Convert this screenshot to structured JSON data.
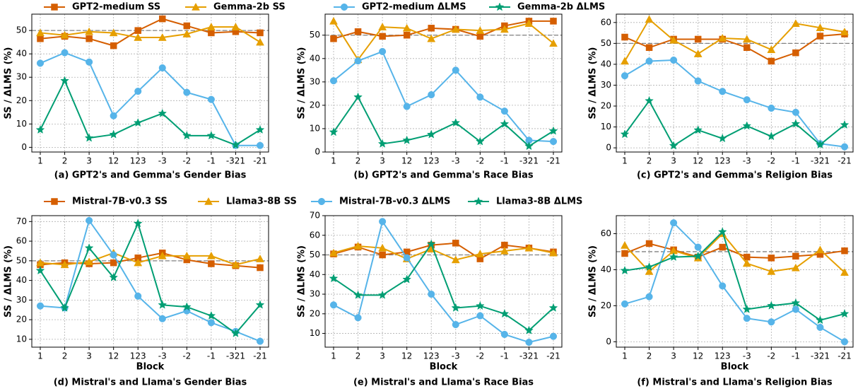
{
  "chart_data": [
    {
      "type": "line",
      "title": "(a) GPT2's and Gemma's Gender Bias",
      "y_label": "SS / ΔLMS (%)",
      "categories": [
        "1",
        "2",
        "3",
        "12",
        "123",
        "-3",
        "-2",
        "-1",
        "-321",
        "-21"
      ],
      "ylim": [
        -2,
        57
      ],
      "yticks": [
        0,
        10,
        20,
        30,
        40,
        50
      ],
      "grid": true,
      "reference_line": 50,
      "series": [
        {
          "name": "GPT2-medium SS",
          "color": "#d55e00",
          "marker": "square",
          "values": [
            46.5,
            47.5,
            46.5,
            43.5,
            50,
            55,
            52,
            49,
            49.5,
            49
          ]
        },
        {
          "name": "Gemma-2b SS",
          "color": "#e69f00",
          "marker": "triangle",
          "values": [
            49,
            48,
            49.5,
            49,
            47,
            47,
            48.5,
            51.5,
            51.5,
            45
          ]
        },
        {
          "name": "GPT2-medium ΔLMS",
          "color": "#56b4e9",
          "marker": "circle",
          "values": [
            36,
            40.5,
            36.5,
            13.5,
            24,
            34,
            23.5,
            20.5,
            0.8,
            0.8
          ]
        },
        {
          "name": "Gemma-2b ΔLMS",
          "color": "#009e73",
          "marker": "star",
          "values": [
            7.5,
            28.5,
            4,
            5.5,
            10.5,
            14.5,
            5,
            5,
            1,
            7.5
          ]
        }
      ]
    },
    {
      "type": "line",
      "title": "(b) GPT2's and Gemma's Race Bias",
      "y_label": "SS / ΔLMS (%)",
      "categories": [
        "1",
        "2",
        "3",
        "12",
        "123",
        "-3",
        "-2",
        "-1",
        "-321",
        "-21"
      ],
      "ylim": [
        0,
        59
      ],
      "yticks": [
        0,
        10,
        20,
        30,
        40,
        50
      ],
      "grid": true,
      "reference_line": 50,
      "series": [
        {
          "name": "GPT2-medium SS",
          "color": "#d55e00",
          "marker": "square",
          "values": [
            48.5,
            51.5,
            49.5,
            50,
            53,
            52.5,
            49.5,
            54,
            56,
            56
          ]
        },
        {
          "name": "Gemma-2b SS",
          "color": "#e69f00",
          "marker": "triangle",
          "values": [
            56,
            39.5,
            53.5,
            53,
            48.5,
            52.5,
            52,
            52.5,
            55,
            46.5
          ]
        },
        {
          "name": "GPT2-medium ΔLMS",
          "color": "#56b4e9",
          "marker": "circle",
          "values": [
            30.5,
            39,
            43,
            19.5,
            24.5,
            35,
            23.5,
            17.5,
            5,
            4.5
          ]
        },
        {
          "name": "Gemma-2b ΔLMS",
          "color": "#009e73",
          "marker": "star",
          "values": [
            8.5,
            23.5,
            3.5,
            5,
            7.5,
            12.5,
            4.5,
            12,
            2.5,
            9
          ]
        }
      ]
    },
    {
      "type": "line",
      "title": "(c) GPT2's and Gemma's Religion Bias",
      "y_label": "SS / ΔLMS (%)",
      "categories": [
        "1",
        "2",
        "3",
        "12",
        "123",
        "-3",
        "-2",
        "-1",
        "-321",
        "-21"
      ],
      "ylim": [
        -2,
        64
      ],
      "yticks": [
        0,
        10,
        20,
        30,
        40,
        50,
        60
      ],
      "grid": true,
      "reference_line": 50,
      "series": [
        {
          "name": "GPT2-medium SS",
          "color": "#d55e00",
          "marker": "square",
          "values": [
            53,
            48,
            52,
            52,
            52,
            48,
            41.5,
            45.5,
            53.5,
            54.5
          ]
        },
        {
          "name": "Gemma-2b SS",
          "color": "#e69f00",
          "marker": "triangle",
          "values": [
            41.5,
            61.5,
            51.5,
            45,
            52.5,
            52,
            47,
            59.5,
            57.5,
            55.5
          ]
        },
        {
          "name": "GPT2-medium ΔLMS",
          "color": "#56b4e9",
          "marker": "circle",
          "values": [
            34.5,
            41.5,
            42,
            32,
            27,
            23,
            19,
            17,
            2,
            0.5
          ]
        },
        {
          "name": "Gemma-2b ΔLMS",
          "color": "#009e73",
          "marker": "star",
          "values": [
            6.5,
            22.5,
            1,
            8.5,
            4.5,
            10.5,
            5.5,
            11.5,
            1.5,
            11
          ]
        }
      ]
    },
    {
      "type": "line",
      "title": "(d) Mistral's and Llama's Gender Bias",
      "y_label": "SS / ΔLMS (%)",
      "x_label": "Block",
      "categories": [
        "1",
        "2",
        "3",
        "12",
        "123",
        "-3",
        "-2",
        "-1",
        "-321",
        "-21"
      ],
      "ylim": [
        6,
        73
      ],
      "yticks": [
        10,
        20,
        30,
        40,
        50,
        60,
        70
      ],
      "grid": true,
      "reference_line": 50,
      "series": [
        {
          "name": "Mistral-7B-v0.3 SS",
          "color": "#d55e00",
          "marker": "square",
          "values": [
            48,
            49,
            48.5,
            49,
            51.5,
            54,
            50.5,
            48.5,
            47.5,
            46.5
          ]
        },
        {
          "name": "Llama3-8B SS",
          "color": "#e69f00",
          "marker": "triangle",
          "values": [
            49,
            48,
            49.5,
            54,
            49,
            52.5,
            52.5,
            52.5,
            48,
            51
          ]
        },
        {
          "name": "Mistral-7B-v0.3 ΔLMS",
          "color": "#56b4e9",
          "marker": "circle",
          "values": [
            27,
            26,
            70.5,
            53,
            32,
            20.5,
            24.5,
            18.5,
            14,
            9
          ]
        },
        {
          "name": "Llama3-8B ΔLMS",
          "color": "#009e73",
          "marker": "star",
          "values": [
            45,
            26,
            56.5,
            41.5,
            69,
            27.5,
            26.5,
            22,
            13,
            27.5
          ]
        }
      ]
    },
    {
      "type": "line",
      "title": "(e) Mistral's and Llama's Race Bias",
      "y_label": "SS / ΔLMS (%)",
      "x_label": "Block",
      "categories": [
        "1",
        "2",
        "3",
        "12",
        "123",
        "-3",
        "-2",
        "-1",
        "-321",
        "-21"
      ],
      "ylim": [
        3,
        70
      ],
      "yticks": [
        10,
        20,
        30,
        40,
        50,
        60,
        70
      ],
      "grid": true,
      "reference_line": 50,
      "series": [
        {
          "name": "Mistral-7B-v0.3 SS",
          "color": "#d55e00",
          "marker": "square",
          "values": [
            50.5,
            54,
            50,
            51.5,
            55,
            56,
            48,
            55,
            53.5,
            51.5
          ]
        },
        {
          "name": "Llama3-8B SS",
          "color": "#e69f00",
          "marker": "triangle",
          "values": [
            51,
            54.5,
            53.5,
            48,
            53,
            47.5,
            50.5,
            52,
            53.5,
            51
          ]
        },
        {
          "name": "Mistral-7B-v0.3 ΔLMS",
          "color": "#56b4e9",
          "marker": "circle",
          "values": [
            24.5,
            18,
            67,
            48.5,
            30,
            14.5,
            19,
            9.5,
            5.5,
            8.5
          ]
        },
        {
          "name": "Llama3-8B ΔLMS",
          "color": "#009e73",
          "marker": "star",
          "values": [
            38,
            29.5,
            29.5,
            37.5,
            55.5,
            23,
            24,
            20,
            11.5,
            23
          ]
        }
      ]
    },
    {
      "type": "line",
      "title": "(f) Mistral's and Llama's Religion Bias",
      "y_label": "SS / ΔLMS (%)",
      "x_label": "Block",
      "categories": [
        "1",
        "2",
        "3",
        "12",
        "123",
        "-3",
        "-2",
        "-1",
        "-321",
        "-21"
      ],
      "ylim": [
        -3,
        70
      ],
      "yticks": [
        0,
        20,
        40,
        60
      ],
      "grid": true,
      "reference_line": 50,
      "series": [
        {
          "name": "Mistral-7B-v0.3 SS",
          "color": "#d55e00",
          "marker": "square",
          "values": [
            49,
            54.5,
            51,
            47,
            52.5,
            47,
            46.5,
            47.5,
            48.5,
            50.5
          ]
        },
        {
          "name": "Llama3-8B SS",
          "color": "#e69f00",
          "marker": "triangle",
          "values": [
            53.5,
            39,
            50.5,
            46.5,
            60,
            43.5,
            39,
            41,
            51,
            38.5
          ]
        },
        {
          "name": "Mistral-7B-v0.3 ΔLMS",
          "color": "#56b4e9",
          "marker": "circle",
          "values": [
            21,
            25,
            66,
            52.5,
            31,
            13,
            11,
            18,
            8,
            0
          ]
        },
        {
          "name": "Llama3-8B ΔLMS",
          "color": "#009e73",
          "marker": "star",
          "values": [
            39.5,
            41.5,
            47,
            47.5,
            61,
            18,
            20,
            21.5,
            12,
            15.5
          ]
        }
      ]
    }
  ]
}
